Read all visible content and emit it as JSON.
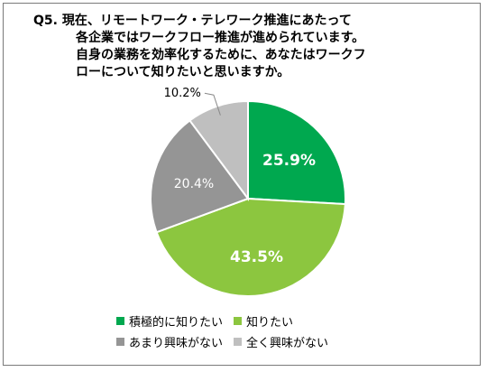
{
  "title_lines": [
    "Q5. 現在、リモートワーク・テレワーク推進にあたって",
    "各企業ではワークフロー推進が進められています。",
    "自身の業務を効率化するために、あなたはワークフ",
    "ローについて知りたいと思いますか。"
  ],
  "chart_data": {
    "type": "pie",
    "title": "Q5. 現在、リモートワーク・テレワーク推進にあたって各企業ではワークフロー推進が進められています。自身の業務を効率化するために、あなたはワークフローについて知りたいと思いますか。",
    "start": "12 o'clock, clockwise",
    "legend_position": "bottom",
    "slices": [
      {
        "label": "積極的に知りたい",
        "value": 25.9,
        "display": "25.9%",
        "color": "#00a84f",
        "label_color": "#ffffff"
      },
      {
        "label": "知りたい",
        "value": 43.5,
        "display": "43.5%",
        "color": "#8cc63f",
        "label_color": "#ffffff"
      },
      {
        "label": "あまり興味がない",
        "value": 20.4,
        "display": "20.4%",
        "color": "#959595",
        "label_color": "#ffffff"
      },
      {
        "label": "全く興味がない",
        "value": 10.2,
        "display": "10.2%",
        "color": "#bfbfbf",
        "label_color": "#000000"
      }
    ]
  }
}
